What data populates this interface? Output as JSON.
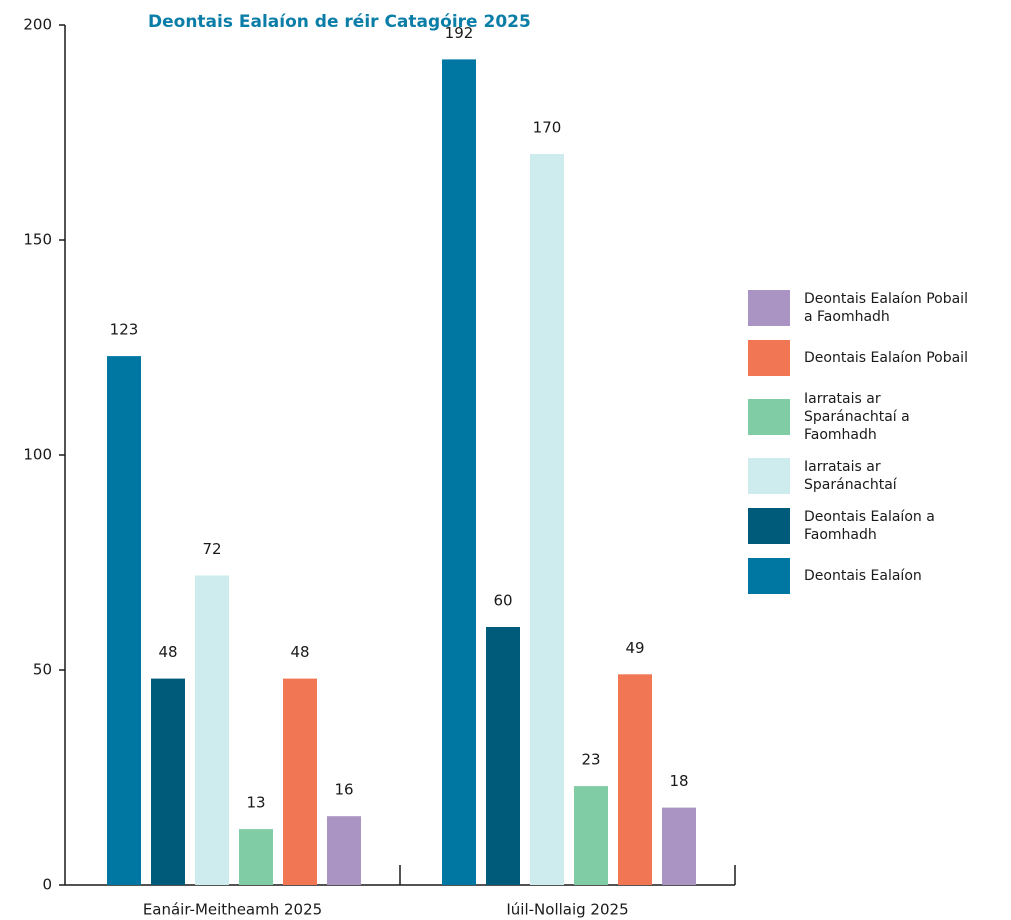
{
  "chart_data": {
    "type": "bar",
    "title": "Deontais Ealaíon de réir Catagóire 2025",
    "categories": [
      "Eanáir-Meitheamh 2025",
      "Iúil-Nollaig 2025"
    ],
    "series": [
      {
        "name": "Deontais Ealaíon",
        "color": "#0077a3",
        "values": [
          123,
          192
        ]
      },
      {
        "name": "Deontais Ealaíon a Faomhadh",
        "color": "#005a7a",
        "values": [
          48,
          60
        ]
      },
      {
        "name": "Iarratais ar Sparánachtaí",
        "color": "#ceecee",
        "values": [
          72,
          170
        ]
      },
      {
        "name": "Iarratais ar Sparánachtaí a Faomhadh",
        "color": "#80cca4",
        "values": [
          13,
          23
        ]
      },
      {
        "name": "Deontais Ealaíon Pobail",
        "color": "#f07654",
        "values": [
          48,
          49
        ]
      },
      {
        "name": "Deontais Ealaíon Pobail a Faomhadh",
        "color": "#a994c4",
        "values": [
          16,
          18
        ]
      }
    ],
    "ylim": [
      0,
      200
    ],
    "yticks": [
      0,
      50,
      100,
      150,
      200
    ],
    "legend": "right"
  }
}
